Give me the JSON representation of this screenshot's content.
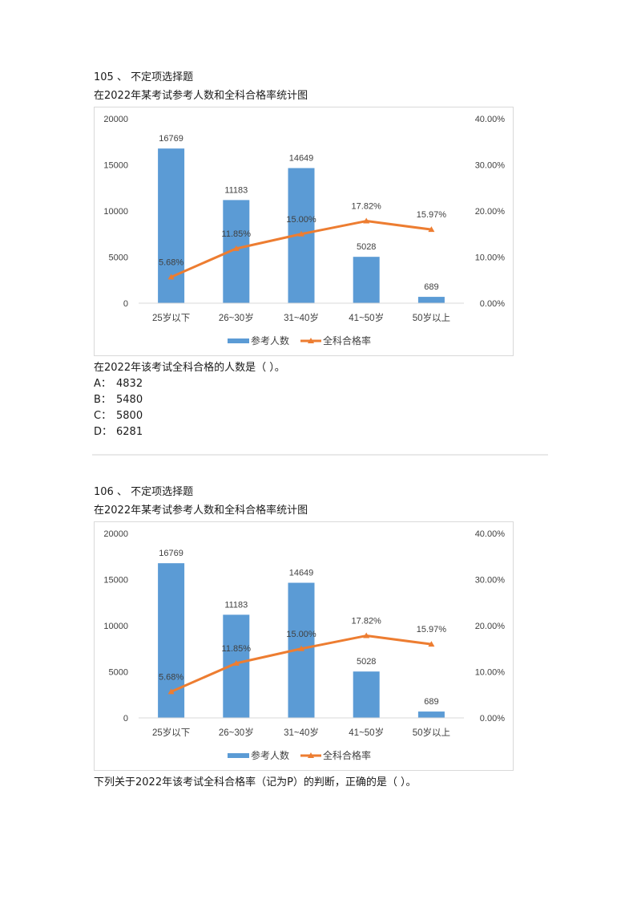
{
  "questions": [
    {
      "number_label": "105 、 不定项选择题",
      "chart_title": "在2022年某考试参考人数和全科合格率统计图",
      "prompt": "在2022年该考试全科合格的人数是（  ）。",
      "options": [
        {
          "key": "A：",
          "value": "4832"
        },
        {
          "key": "B：",
          "value": "5480"
        },
        {
          "key": "C：",
          "value": "5800"
        },
        {
          "key": "D：",
          "value": "6281"
        }
      ]
    },
    {
      "number_label": "106 、 不定项选择题",
      "chart_title": "在2022年某考试参考人数和全科合格率统计图",
      "prompt": "下列关于2022年该考试全科合格率（记为P）的判断，正确的是（  ）。"
    }
  ],
  "colors": {
    "bar": "#5b9bd5",
    "line": "#ed7d31",
    "axis": "#d9d9d9",
    "label": "#404040"
  },
  "chart_data": [
    {
      "type": "bar",
      "title": "在2022年某考试参考人数和全科合格率统计图",
      "categories": [
        "25岁以下",
        "26~30岁",
        "31~40岁",
        "41~50岁",
        "50岁以上"
      ],
      "series": [
        {
          "name": "参考人数",
          "type": "bar",
          "axis": "left",
          "values": [
            16769,
            11183,
            14649,
            5028,
            689
          ],
          "labels": [
            "16769",
            "11183",
            "14649",
            "5028",
            "689"
          ]
        },
        {
          "name": "全科合格率",
          "type": "line",
          "axis": "right",
          "values": [
            5.68,
            11.85,
            15.0,
            17.82,
            15.97
          ],
          "labels": [
            "5.68%",
            "11.85%",
            "15.00%",
            "17.82%",
            "15.97%"
          ]
        }
      ],
      "y_left": {
        "ticks": [
          "0",
          "5000",
          "10000",
          "15000",
          "20000"
        ],
        "ylim": [
          0,
          20000
        ]
      },
      "y_right": {
        "ticks": [
          "0.00%",
          "10.00%",
          "20.00%",
          "30.00%",
          "40.00%"
        ],
        "ylim": [
          0,
          40
        ]
      },
      "legend": {
        "position": "bottom",
        "entries": [
          "参考人数",
          "全科合格率"
        ]
      },
      "grid": false
    },
    {
      "type": "bar",
      "title": "在2022年某考试参考人数和全科合格率统计图",
      "categories": [
        "25岁以下",
        "26~30岁",
        "31~40岁",
        "41~50岁",
        "50岁以上"
      ],
      "series": [
        {
          "name": "参考人数",
          "type": "bar",
          "axis": "left",
          "values": [
            16769,
            11183,
            14649,
            5028,
            689
          ],
          "labels": [
            "16769",
            "11183",
            "14649",
            "5028",
            "689"
          ]
        },
        {
          "name": "全科合格率",
          "type": "line",
          "axis": "right",
          "values": [
            5.68,
            11.85,
            15.0,
            17.82,
            15.97
          ],
          "labels": [
            "5.68%",
            "11.85%",
            "15.00%",
            "17.82%",
            "15.97%"
          ]
        }
      ],
      "y_left": {
        "ticks": [
          "0",
          "5000",
          "10000",
          "15000",
          "20000"
        ],
        "ylim": [
          0,
          20000
        ]
      },
      "y_right": {
        "ticks": [
          "0.00%",
          "10.00%",
          "20.00%",
          "30.00%",
          "40.00%"
        ],
        "ylim": [
          0,
          40
        ]
      },
      "legend": {
        "position": "bottom",
        "entries": [
          "参考人数",
          "全科合格率"
        ]
      },
      "grid": false
    }
  ]
}
